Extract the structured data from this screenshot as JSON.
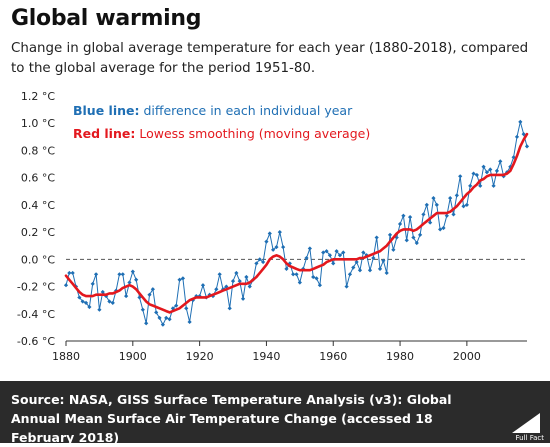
{
  "header": {
    "title": "Global warming",
    "subtitle": "Change in global average temperature for each year (1880-2018), compared to the global average for the period 1951-80."
  },
  "legend": {
    "blue_label": "Blue line:",
    "blue_text": " difference in each individual year",
    "red_label": "Red line:",
    "red_text": " Lowess smoothing (moving average)"
  },
  "footer": {
    "source_label": "Source:",
    "source_text": " NASA, GISS Surface Temperature Analysis (v3): Global Annual Mean Surface Air Temperature Change (accessed 18 February 2018)",
    "logo_text": "Full Fact"
  },
  "colors": {
    "annual": "#1f6fb4",
    "smooth": "#e3181e",
    "zero_line": "#555555",
    "axis_text": "#222222"
  },
  "chart_data": {
    "type": "line",
    "x_start": 1880,
    "xlim": [
      1880,
      2018
    ],
    "ylim": [
      -0.6,
      1.2
    ],
    "x_ticks": [
      "1880",
      "1900",
      "1920",
      "1940",
      "1960",
      "1980",
      "2000"
    ],
    "x_tick_values": [
      1880,
      1900,
      1920,
      1940,
      1960,
      1980,
      2000
    ],
    "y_ticks": [
      "-0.6 °C",
      "-0.4 °C",
      "-0.2 °C",
      "0.0 °C",
      "0.2 °C",
      "0.4 °C",
      "0.6 °C",
      "0.8 °C",
      "1.0 °C",
      "1.2 °C"
    ],
    "y_tick_values": [
      -0.6,
      -0.4,
      -0.2,
      0.0,
      0.2,
      0.4,
      0.6,
      0.8,
      1.0,
      1.2
    ],
    "grid": false,
    "legend_position": "top-left",
    "series": [
      {
        "values": [
          -0.19,
          -0.1,
          -0.1,
          -0.2,
          -0.28,
          -0.31,
          -0.32,
          -0.35,
          -0.18,
          -0.11,
          -0.37,
          -0.24,
          -0.27,
          -0.31,
          -0.32,
          -0.23,
          -0.11,
          -0.11,
          -0.27,
          -0.17,
          -0.09,
          -0.15,
          -0.28,
          -0.37,
          -0.47,
          -0.26,
          -0.22,
          -0.39,
          -0.43,
          -0.48,
          -0.43,
          -0.44,
          -0.36,
          -0.34,
          -0.15,
          -0.14,
          -0.36,
          -0.46,
          -0.3,
          -0.27,
          -0.27,
          -0.19,
          -0.28,
          -0.26,
          -0.27,
          -0.22,
          -0.11,
          -0.22,
          -0.2,
          -0.36,
          -0.16,
          -0.1,
          -0.16,
          -0.29,
          -0.13,
          -0.2,
          -0.15,
          -0.03,
          0.0,
          -0.02,
          0.13,
          0.19,
          0.07,
          0.09,
          0.2,
          0.09,
          -0.07,
          -0.03,
          -0.11,
          -0.11,
          -0.17,
          -0.07,
          0.01,
          0.08,
          -0.13,
          -0.14,
          -0.19,
          0.05,
          0.06,
          0.03,
          -0.03,
          0.06,
          0.03,
          0.05,
          -0.2,
          -0.11,
          -0.06,
          -0.02,
          -0.08,
          0.05,
          0.03,
          -0.08,
          0.01,
          0.16,
          -0.07,
          -0.01,
          -0.1,
          0.18,
          0.07,
          0.16,
          0.26,
          0.32,
          0.14,
          0.31,
          0.16,
          0.12,
          0.18,
          0.33,
          0.4,
          0.27,
          0.45,
          0.4,
          0.22,
          0.23,
          0.32,
          0.45,
          0.33,
          0.47,
          0.61,
          0.39,
          0.4,
          0.54,
          0.63,
          0.62,
          0.54,
          0.68,
          0.64,
          0.66,
          0.54,
          0.65,
          0.72,
          0.61,
          0.64,
          0.68,
          0.75,
          0.9,
          1.01,
          0.92,
          0.83
        ]
      },
      {
        "values": [
          -0.12,
          -0.15,
          -0.18,
          -0.21,
          -0.24,
          -0.26,
          -0.27,
          -0.27,
          -0.27,
          -0.26,
          -0.26,
          -0.26,
          -0.26,
          -0.25,
          -0.25,
          -0.24,
          -0.23,
          -0.21,
          -0.2,
          -0.19,
          -0.2,
          -0.22,
          -0.25,
          -0.28,
          -0.31,
          -0.33,
          -0.34,
          -0.35,
          -0.36,
          -0.37,
          -0.38,
          -0.39,
          -0.38,
          -0.37,
          -0.36,
          -0.34,
          -0.32,
          -0.3,
          -0.29,
          -0.28,
          -0.28,
          -0.28,
          -0.28,
          -0.27,
          -0.26,
          -0.25,
          -0.24,
          -0.23,
          -0.22,
          -0.21,
          -0.2,
          -0.19,
          -0.18,
          -0.18,
          -0.18,
          -0.17,
          -0.15,
          -0.13,
          -0.1,
          -0.07,
          -0.04,
          0.0,
          0.02,
          0.03,
          0.02,
          0.0,
          -0.03,
          -0.05,
          -0.06,
          -0.07,
          -0.08,
          -0.08,
          -0.08,
          -0.08,
          -0.07,
          -0.06,
          -0.05,
          -0.04,
          -0.02,
          -0.01,
          0.0,
          0.0,
          0.0,
          0.0,
          0.0,
          0.0,
          0.0,
          0.0,
          0.01,
          0.01,
          0.02,
          0.03,
          0.04,
          0.05,
          0.06,
          0.08,
          0.1,
          0.13,
          0.16,
          0.19,
          0.21,
          0.22,
          0.22,
          0.22,
          0.21,
          0.22,
          0.24,
          0.26,
          0.28,
          0.3,
          0.32,
          0.34,
          0.34,
          0.34,
          0.34,
          0.35,
          0.37,
          0.39,
          0.42,
          0.45,
          0.48,
          0.5,
          0.53,
          0.55,
          0.58,
          0.59,
          0.61,
          0.62,
          0.62,
          0.62,
          0.62,
          0.62,
          0.63,
          0.65,
          0.7,
          0.76,
          0.83,
          0.88,
          0.92
        ]
      }
    ]
  }
}
